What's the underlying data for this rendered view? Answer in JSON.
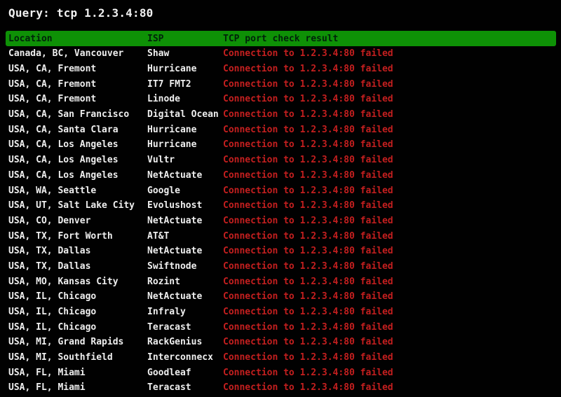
{
  "query": {
    "text": "Query: tcp 1.2.3.4:80"
  },
  "colors": {
    "background": "#010101",
    "header_bg": "#0e9106",
    "header_fg": "#00230a",
    "row_text": "#efefef",
    "fail_red": "#c41f1f"
  },
  "table": {
    "headers": {
      "location": "Location",
      "isp": "ISP",
      "result": "TCP port check result"
    },
    "rows": [
      {
        "location": "Canada, BC, Vancouver",
        "isp": "Shaw",
        "result": "Connection to 1.2.3.4:80 failed"
      },
      {
        "location": "USA, CA, Fremont",
        "isp": "Hurricane",
        "result": "Connection to 1.2.3.4:80 failed"
      },
      {
        "location": "USA, CA, Fremont",
        "isp": "IT7 FMT2",
        "result": "Connection to 1.2.3.4:80 failed"
      },
      {
        "location": "USA, CA, Fremont",
        "isp": "Linode",
        "result": "Connection to 1.2.3.4:80 failed"
      },
      {
        "location": "USA, CA, San Francisco",
        "isp": "Digital Ocean",
        "result": "Connection to 1.2.3.4:80 failed"
      },
      {
        "location": "USA, CA, Santa Clara",
        "isp": "Hurricane",
        "result": "Connection to 1.2.3.4:80 failed"
      },
      {
        "location": "USA, CA, Los Angeles",
        "isp": "Hurricane",
        "result": "Connection to 1.2.3.4:80 failed"
      },
      {
        "location": "USA, CA, Los Angeles",
        "isp": "Vultr",
        "result": "Connection to 1.2.3.4:80 failed"
      },
      {
        "location": "USA, CA, Los Angeles",
        "isp": "NetActuate",
        "result": "Connection to 1.2.3.4:80 failed"
      },
      {
        "location": "USA, WA, Seattle",
        "isp": "Google",
        "result": "Connection to 1.2.3.4:80 failed"
      },
      {
        "location": "USA, UT, Salt Lake City",
        "isp": "Evolushost",
        "result": "Connection to 1.2.3.4:80 failed"
      },
      {
        "location": "USA, CO, Denver",
        "isp": "NetActuate",
        "result": "Connection to 1.2.3.4:80 failed"
      },
      {
        "location": "USA, TX, Fort Worth",
        "isp": "AT&T",
        "result": "Connection to 1.2.3.4:80 failed"
      },
      {
        "location": "USA, TX, Dallas",
        "isp": "NetActuate",
        "result": "Connection to 1.2.3.4:80 failed"
      },
      {
        "location": "USA, TX, Dallas",
        "isp": "Swiftnode",
        "result": "Connection to 1.2.3.4:80 failed"
      },
      {
        "location": "USA, MO, Kansas City",
        "isp": "Rozint",
        "result": "Connection to 1.2.3.4:80 failed"
      },
      {
        "location": "USA, IL, Chicago",
        "isp": "NetActuate",
        "result": "Connection to 1.2.3.4:80 failed"
      },
      {
        "location": "USA, IL, Chicago",
        "isp": "Infraly",
        "result": "Connection to 1.2.3.4:80 failed"
      },
      {
        "location": "USA, IL, Chicago",
        "isp": "Teracast",
        "result": "Connection to 1.2.3.4:80 failed"
      },
      {
        "location": "USA, MI, Grand Rapids",
        "isp": "RackGenius",
        "result": "Connection to 1.2.3.4:80 failed"
      },
      {
        "location": "USA, MI, Southfield",
        "isp": "Interconnecx",
        "result": "Connection to 1.2.3.4:80 failed"
      },
      {
        "location": "USA, FL, Miami",
        "isp": "Goodleaf",
        "result": "Connection to 1.2.3.4:80 failed"
      },
      {
        "location": "USA, FL, Miami",
        "isp": "Teracast",
        "result": "Connection to 1.2.3.4:80 failed"
      }
    ]
  }
}
